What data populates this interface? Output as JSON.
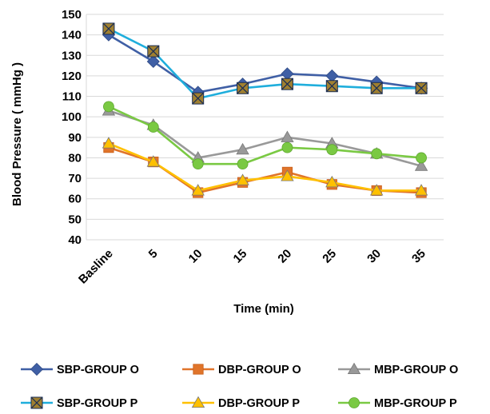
{
  "chart_data": {
    "type": "line",
    "title": "",
    "xlabel": "Time (min)",
    "ylabel": "Blood Pressure ( mmHg )",
    "categories": [
      "Basline",
      "5",
      "10",
      "15",
      "20",
      "25",
      "30",
      "35"
    ],
    "ylim": [
      40,
      150
    ],
    "yticks": [
      40,
      50,
      60,
      70,
      80,
      90,
      100,
      110,
      120,
      130,
      140,
      150
    ],
    "grid": true,
    "legend_position": "bottom",
    "series": [
      {
        "name": "SBP-GROUP O",
        "values": [
          140,
          127,
          112,
          116,
          121,
          120,
          117,
          114
        ],
        "color": "#3F5FA5",
        "marker": "diamond"
      },
      {
        "name": "DBP-GROUP O",
        "values": [
          85,
          78,
          63,
          68,
          73,
          67,
          64,
          63
        ],
        "color": "#E0742A",
        "marker": "square"
      },
      {
        "name": "MBP-GROUP O",
        "values": [
          103,
          96,
          80,
          84,
          90,
          87,
          82,
          76
        ],
        "color": "#999999",
        "marker": "triangle"
      },
      {
        "name": "SBP-GROUP P",
        "values": [
          143,
          132,
          109,
          114,
          116,
          115,
          114,
          114
        ],
        "color": "#1FAEDC",
        "marker": "x-square"
      },
      {
        "name": "DBP-GROUP P",
        "values": [
          87,
          78,
          64,
          69,
          71,
          68,
          64,
          64
        ],
        "color": "#FFC000",
        "marker": "triangle"
      },
      {
        "name": "MBP-GROUP P",
        "values": [
          105,
          95,
          77,
          77,
          85,
          84,
          82,
          80
        ],
        "color": "#7AC943",
        "marker": "circle"
      }
    ]
  }
}
